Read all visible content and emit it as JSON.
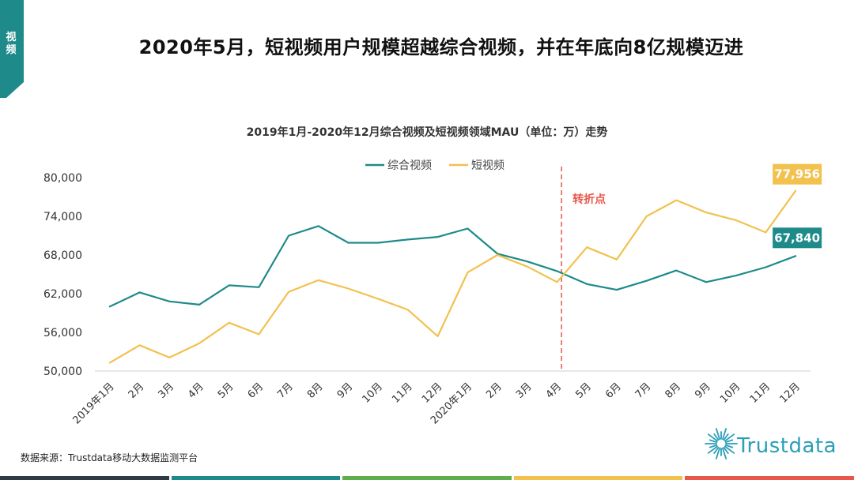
{
  "section_tag": {
    "label": "视频",
    "color": "#1f8a8a"
  },
  "page_title": "2020年5月，短视频用户规模超越综合视频，并在年底向8亿规模迈进",
  "source": "数据来源：Trustdata移动大数据监测平台",
  "brand": {
    "name": "Trustdata",
    "color": "#2a9fb6"
  },
  "footer_colors": [
    "#2e3a44",
    "#1f8a8a",
    "#5fae4e",
    "#f2c14e",
    "#e8574a"
  ],
  "chart_data": {
    "type": "line",
    "title": "2019年1月-2020年12月综合视频及短视频领域MAU（单位：万）走势",
    "categories": [
      "2019年1月",
      "2月",
      "3月",
      "4月",
      "5月",
      "6月",
      "7月",
      "8月",
      "9月",
      "10月",
      "11月",
      "12月",
      "2020年1月",
      "2月",
      "3月",
      "4月",
      "5月",
      "6月",
      "7月",
      "8月",
      "9月",
      "10月",
      "11月",
      "12月"
    ],
    "ylim": [
      50000,
      80000
    ],
    "yticks": [
      50000,
      56000,
      62000,
      68000,
      74000,
      80000
    ],
    "ytick_labels": [
      "50,000",
      "56,000",
      "62,000",
      "68,000",
      "74,000",
      "80,000"
    ],
    "legend_position": "top-center",
    "grid": false,
    "series": [
      {
        "name": "综合视频",
        "color": "#1f8a8a",
        "values": [
          60000,
          62200,
          60800,
          60300,
          63300,
          63000,
          71000,
          72500,
          69900,
          69900,
          70400,
          70800,
          72100,
          68200,
          67000,
          65500,
          63500,
          62600,
          64000,
          65600,
          63800,
          64800,
          66100,
          67840
        ],
        "end_label": "67,840"
      },
      {
        "name": "短视频",
        "color": "#f2c14e",
        "values": [
          51300,
          54000,
          52100,
          54300,
          57500,
          55700,
          62300,
          64100,
          62800,
          61200,
          59500,
          55400,
          65300,
          68000,
          66200,
          63800,
          69200,
          67300,
          74000,
          76500,
          74600,
          73400,
          71500,
          77956
        ],
        "end_label": "77,956"
      }
    ],
    "annotation": {
      "label": "转折点",
      "color": "#e8574a"
    }
  }
}
